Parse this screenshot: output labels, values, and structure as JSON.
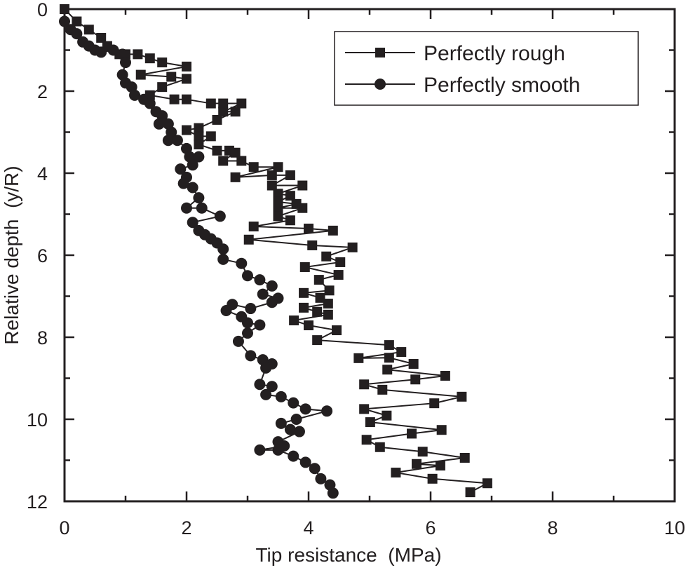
{
  "chart_data": {
    "type": "line",
    "title": "",
    "xlabel": "Tip resistance  (MPa)",
    "ylabel": "Relative depth  (y/R)",
    "xlim": [
      0,
      10
    ],
    "ylim": [
      0,
      12
    ],
    "y_inverted": true,
    "xticks": [
      "0",
      "2",
      "4",
      "6",
      "8",
      "10"
    ],
    "yticks": [
      "0",
      "2",
      "4",
      "6",
      "8",
      "10",
      "12"
    ],
    "grid": false,
    "legend_position": "top-right",
    "color": "#231f20",
    "series": [
      {
        "name": "Perfectly rough",
        "marker": "square",
        "points": [
          [
            0,
            0
          ],
          [
            0.2,
            0.3
          ],
          [
            0.4,
            0.5
          ],
          [
            0.6,
            0.7
          ],
          [
            0.7,
            0.9
          ],
          [
            0.9,
            1.1
          ],
          [
            1.0,
            1.1
          ],
          [
            1.2,
            1.1
          ],
          [
            1.4,
            1.2
          ],
          [
            1.6,
            1.3
          ],
          [
            2.0,
            1.4
          ],
          [
            1.25,
            1.6
          ],
          [
            1.75,
            1.65
          ],
          [
            2.0,
            1.7
          ],
          [
            1.6,
            1.9
          ],
          [
            1.4,
            2.1
          ],
          [
            1.8,
            2.2
          ],
          [
            2.0,
            2.2
          ],
          [
            2.4,
            2.3
          ],
          [
            2.6,
            2.3
          ],
          [
            2.9,
            2.3
          ],
          [
            2.6,
            2.5
          ],
          [
            2.8,
            2.5
          ],
          [
            2.5,
            2.7
          ],
          [
            2.2,
            2.9
          ],
          [
            2.0,
            2.95
          ],
          [
            2.2,
            3.1
          ],
          [
            2.4,
            3.1
          ],
          [
            2.2,
            3.3
          ],
          [
            2.5,
            3.45
          ],
          [
            2.7,
            3.45
          ],
          [
            2.8,
            3.5
          ],
          [
            2.6,
            3.7
          ],
          [
            2.9,
            3.7
          ],
          [
            3.1,
            3.85
          ],
          [
            3.5,
            3.85
          ],
          [
            2.8,
            4.1
          ],
          [
            3.4,
            4.05
          ],
          [
            3.7,
            4.05
          ],
          [
            3.4,
            4.3
          ],
          [
            3.9,
            4.3
          ],
          [
            3.5,
            4.5
          ],
          [
            3.7,
            4.55
          ],
          [
            3.5,
            4.7
          ],
          [
            3.8,
            4.75
          ],
          [
            3.5,
            4.85
          ],
          [
            3.9,
            4.85
          ],
          [
            3.5,
            5.05
          ],
          [
            3.7,
            5.15
          ],
          [
            3.1,
            5.3
          ],
          [
            4.0,
            5.35
          ],
          [
            4.4,
            5.4
          ],
          [
            3.02,
            5.62
          ],
          [
            4.06,
            5.76
          ],
          [
            4.72,
            5.81
          ],
          [
            4.29,
            6.03
          ],
          [
            4.52,
            6.17
          ],
          [
            3.94,
            6.29
          ],
          [
            4.49,
            6.48
          ],
          [
            4.17,
            6.6
          ],
          [
            4.34,
            6.86
          ],
          [
            3.92,
            6.92
          ],
          [
            4.19,
            7.04
          ],
          [
            4.32,
            7.18
          ],
          [
            3.92,
            7.28
          ],
          [
            4.14,
            7.38
          ],
          [
            4.32,
            7.45
          ],
          [
            3.76,
            7.59
          ],
          [
            4.0,
            7.71
          ],
          [
            4.46,
            7.83
          ],
          [
            4.14,
            8.07
          ],
          [
            5.32,
            8.19
          ],
          [
            5.52,
            8.36
          ],
          [
            4.82,
            8.51
          ],
          [
            5.32,
            8.5
          ],
          [
            5.72,
            8.65
          ],
          [
            5.29,
            8.79
          ],
          [
            6.24,
            8.94
          ],
          [
            5.75,
            9.03
          ],
          [
            4.91,
            9.15
          ],
          [
            5.21,
            9.28
          ],
          [
            6.51,
            9.45
          ],
          [
            6.06,
            9.61
          ],
          [
            4.91,
            9.75
          ],
          [
            5.28,
            9.91
          ],
          [
            5.01,
            10.07
          ],
          [
            6.18,
            10.26
          ],
          [
            5.69,
            10.35
          ],
          [
            4.95,
            10.5
          ],
          [
            5.17,
            10.68
          ],
          [
            5.87,
            10.79
          ],
          [
            6.56,
            10.94
          ],
          [
            5.77,
            11.09
          ],
          [
            6.16,
            11.13
          ],
          [
            5.43,
            11.3
          ],
          [
            6.03,
            11.45
          ],
          [
            6.93,
            11.56
          ],
          [
            6.65,
            11.78
          ]
        ]
      },
      {
        "name": "Perfectly smooth",
        "marker": "circle",
        "points": [
          [
            0,
            0.3
          ],
          [
            0.1,
            0.5
          ],
          [
            0.2,
            0.6
          ],
          [
            0.3,
            0.8
          ],
          [
            0.4,
            0.9
          ],
          [
            0.5,
            1.0
          ],
          [
            0.6,
            1.05
          ],
          [
            0.8,
            1.0
          ],
          [
            0.95,
            1.1
          ],
          [
            1.0,
            1.3
          ],
          [
            0.95,
            1.6
          ],
          [
            1.0,
            1.8
          ],
          [
            1.1,
            1.9
          ],
          [
            1.15,
            2.1
          ],
          [
            1.3,
            2.2
          ],
          [
            1.4,
            2.3
          ],
          [
            1.5,
            2.5
          ],
          [
            1.6,
            2.6
          ],
          [
            1.55,
            2.8
          ],
          [
            1.7,
            2.8
          ],
          [
            1.75,
            3.0
          ],
          [
            1.7,
            3.2
          ],
          [
            1.85,
            3.2
          ],
          [
            2.0,
            3.4
          ],
          [
            2.05,
            3.6
          ],
          [
            2.2,
            3.6
          ],
          [
            2.1,
            3.8
          ],
          [
            1.9,
            3.9
          ],
          [
            2.0,
            4.1
          ],
          [
            1.95,
            4.25
          ],
          [
            2.1,
            4.35
          ],
          [
            2.2,
            4.6
          ],
          [
            2.0,
            4.85
          ],
          [
            2.25,
            4.85
          ],
          [
            2.55,
            5.05
          ],
          [
            2.1,
            5.2
          ],
          [
            2.2,
            5.4
          ],
          [
            2.3,
            5.5
          ],
          [
            2.4,
            5.6
          ],
          [
            2.5,
            5.7
          ],
          [
            2.6,
            5.85
          ],
          [
            2.6,
            6.1
          ],
          [
            2.9,
            6.2
          ],
          [
            3.0,
            6.5
          ],
          [
            3.2,
            6.6
          ],
          [
            3.4,
            6.75
          ],
          [
            3.25,
            6.95
          ],
          [
            3.5,
            7.05
          ],
          [
            3.4,
            7.15
          ],
          [
            3.05,
            7.3
          ],
          [
            2.75,
            7.2
          ],
          [
            2.65,
            7.35
          ],
          [
            2.9,
            7.5
          ],
          [
            3.0,
            7.65
          ],
          [
            3.2,
            7.7
          ],
          [
            3.0,
            7.9
          ],
          [
            2.85,
            8.1
          ],
          [
            3.05,
            8.45
          ],
          [
            3.25,
            8.55
          ],
          [
            3.4,
            8.65
          ],
          [
            3.3,
            8.75
          ],
          [
            3.2,
            9.15
          ],
          [
            3.4,
            9.2
          ],
          [
            3.3,
            9.4
          ],
          [
            3.55,
            9.45
          ],
          [
            3.75,
            9.6
          ],
          [
            3.95,
            9.75
          ],
          [
            4.3,
            9.8
          ],
          [
            3.8,
            10.0
          ],
          [
            3.55,
            10.1
          ],
          [
            3.7,
            10.25
          ],
          [
            3.85,
            10.3
          ],
          [
            3.5,
            10.55
          ],
          [
            3.6,
            10.65
          ],
          [
            3.2,
            10.75
          ],
          [
            3.5,
            10.75
          ],
          [
            3.75,
            10.9
          ],
          [
            3.95,
            11.05
          ],
          [
            4.1,
            11.2
          ],
          [
            4.2,
            11.45
          ],
          [
            4.35,
            11.6
          ],
          [
            4.4,
            11.8
          ]
        ]
      }
    ]
  }
}
